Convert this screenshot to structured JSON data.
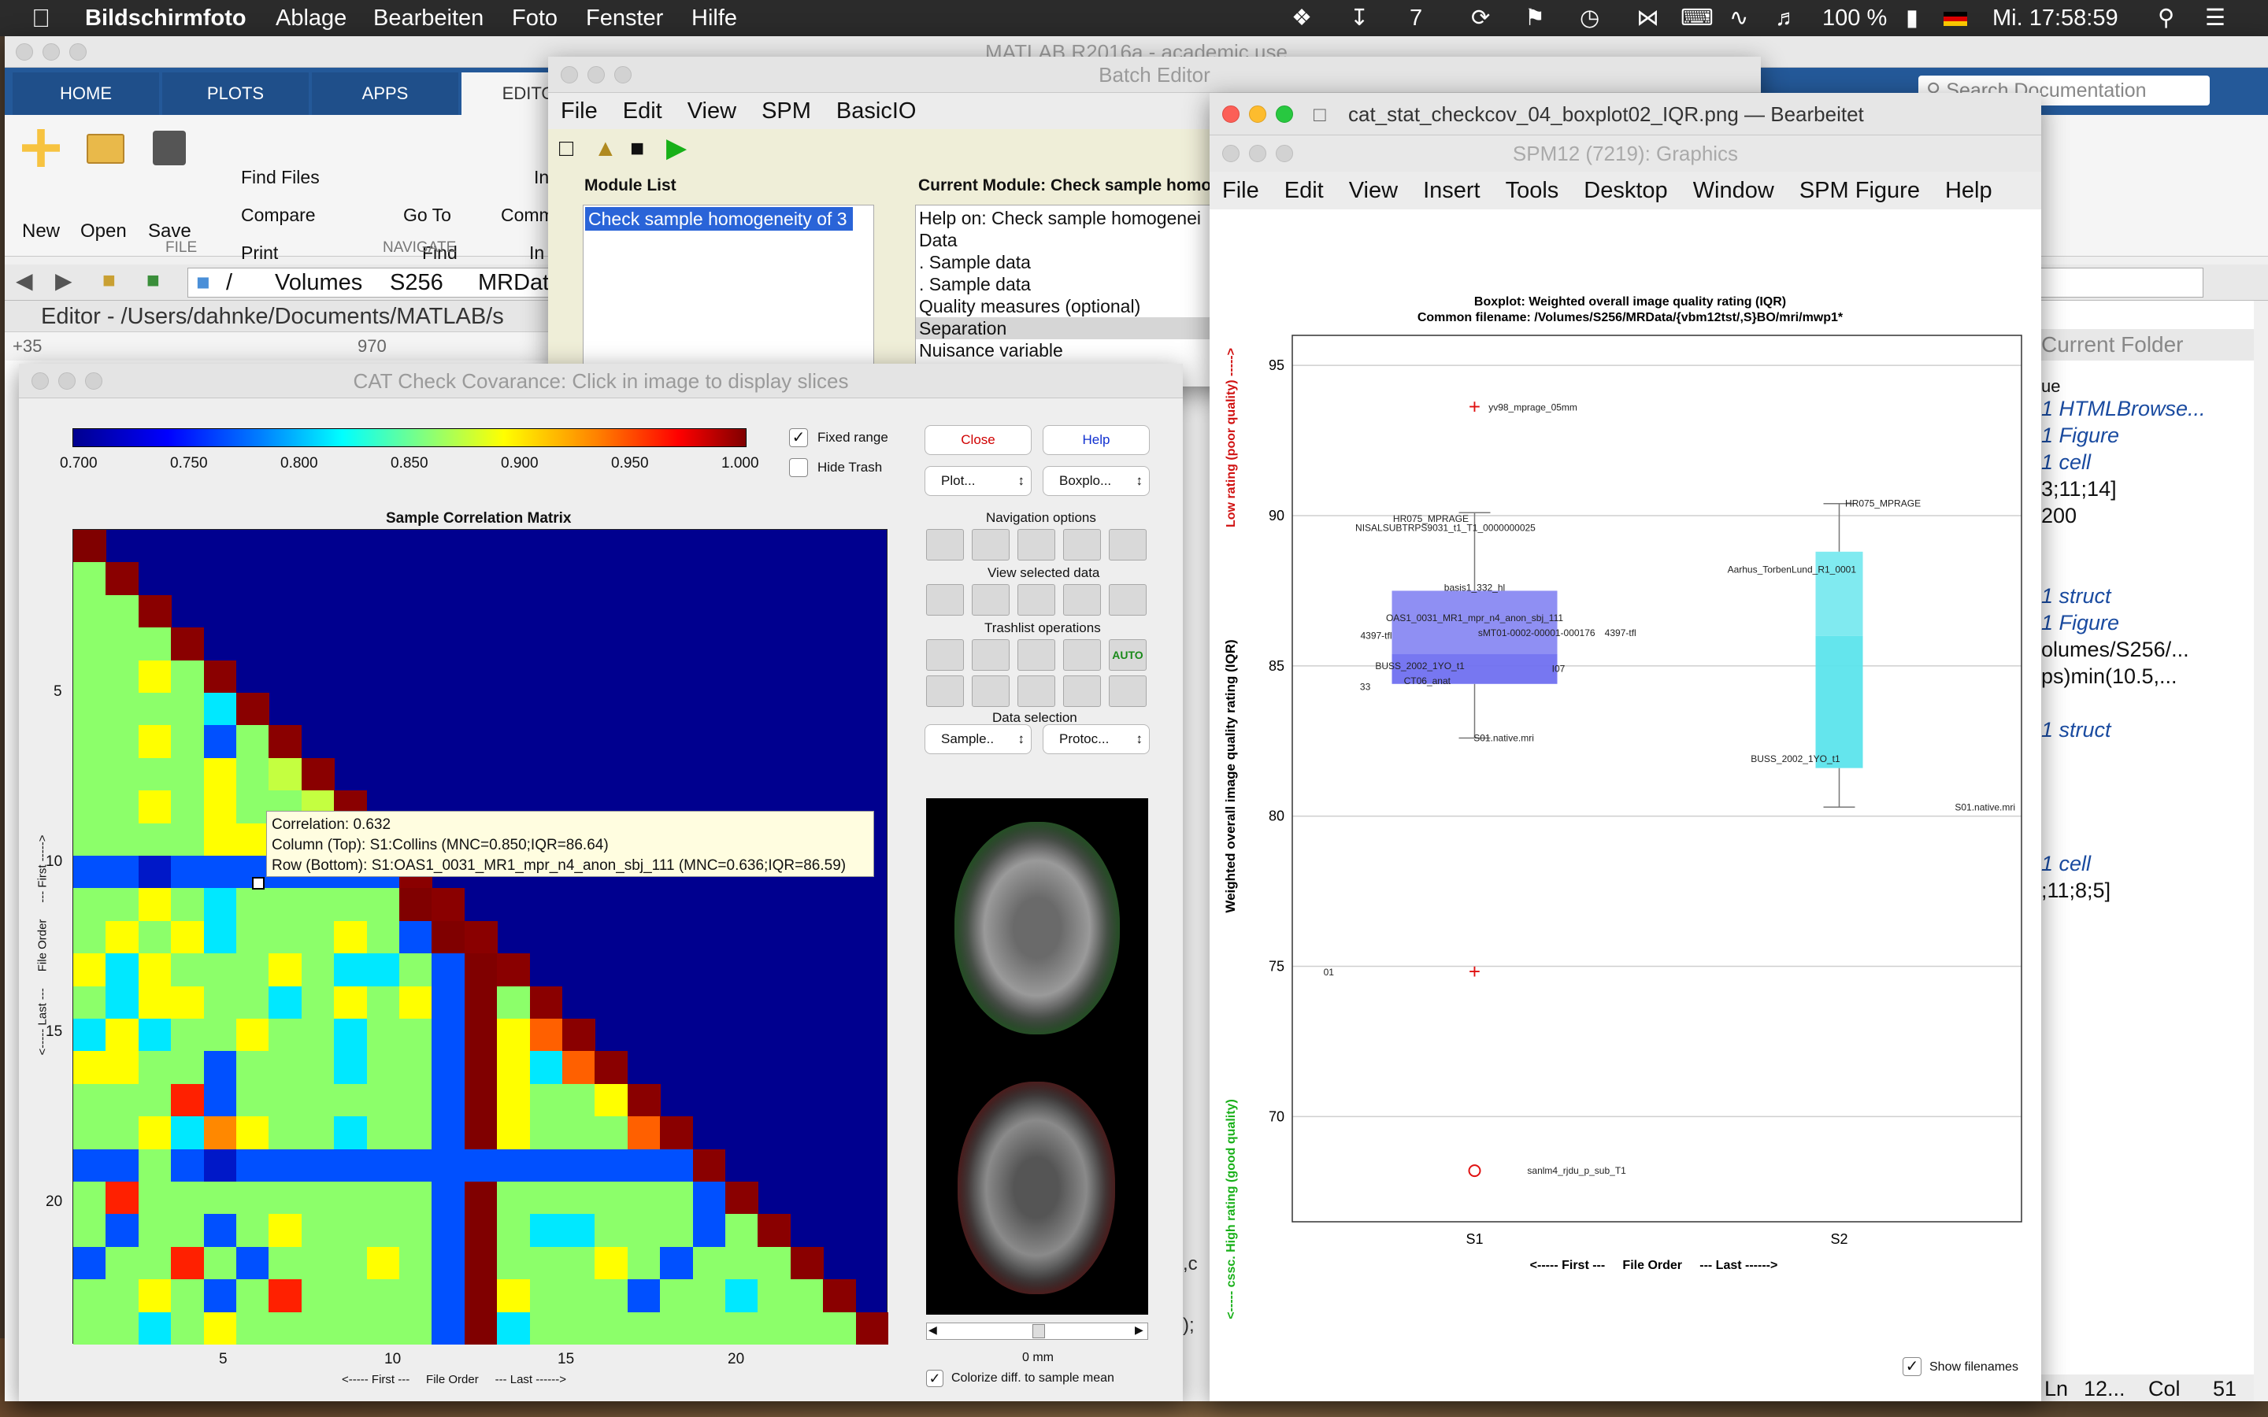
{
  "menubar": {
    "app": "Bildschirmfoto",
    "items": [
      "Ablage",
      "Bearbeiten",
      "Foto",
      "Fenster",
      "Hilfe"
    ],
    "badge": "7",
    "battery": "100 %",
    "clock": "Mi. 17:58:59"
  },
  "matlab": {
    "title": "MATLAB R2016a - academic use",
    "tabs": [
      "HOME",
      "PLOTS",
      "APPS",
      "EDITOR"
    ],
    "search_placeholder": "Search Documentation",
    "file_buttons": [
      "New",
      "Open",
      "Save"
    ],
    "file_tools": [
      "Find Files",
      "Compare",
      "Print"
    ],
    "nav_tools": [
      "Go To",
      "Find"
    ],
    "comment_partial": "Comm",
    "indent_partial": "In",
    "in2": "In",
    "group_file": "FILE",
    "group_navigate": "NAVIGATE",
    "path": [
      "/",
      "Volumes",
      "S256",
      "MRData"
    ],
    "editor_title": "Editor - /Users/dahnke/Documents/MATLAB/s",
    "ruler_left": "+35",
    "ruler_val": "970",
    "current_folder": "Current Folder",
    "workspace_header": "ue",
    "workspace_items": [
      "1 HTMLBrowse...",
      "1 Figure",
      "1 cell",
      "3;11;14]",
      "200",
      "1 struct",
      "1 Figure",
      "olumes/S256/...",
      "ps)min(10.5,...",
      "1 struct",
      "1 cell",
      ";11;8;5]"
    ],
    "status": {
      "ln": "Ln",
      "ln_val": "12...",
      "col": "Col",
      "col_val": "51"
    },
    "edge_chars": [
      "c",
      ",c",
      ");",
      "on"
    ]
  },
  "batch": {
    "title": "Batch Editor",
    "menu": [
      "File",
      "Edit",
      "View",
      "SPM",
      "BasicIO"
    ],
    "module_list_label": "Module List",
    "module_item": "Check sample homogeneity of 3",
    "current_module_label": "Current Module: Check sample homog",
    "lines": [
      "Help on: Check sample homogenei",
      "Data",
      ". Sample data",
      ". Sample data",
      "Quality measures (optional)",
      "Separation",
      "Nuisance variable"
    ]
  },
  "cat": {
    "title": "CAT Check Covarance: Click in image to display slices",
    "colorbar_ticks": [
      "0.700",
      "0.750",
      "0.800",
      "0.850",
      "0.900",
      "0.950",
      "1.000"
    ],
    "fixed_range": "Fixed range",
    "hide_trash": "Hide Trash",
    "close": "Close",
    "help": "Help",
    "plot_select": "Plot...",
    "boxplot_select": "Boxplo...",
    "navigation_options": "Navigation options",
    "view_selected_data": "View selected data",
    "trashlist_operations": "Trashlist operations",
    "auto": "AUTO",
    "data_selection": "Data selection",
    "sample_select": "Sample..",
    "protocol_select": "Protoc...",
    "matrix_title": "Sample Correlation Matrix",
    "y_ticks": [
      "5",
      "10",
      "15",
      "20"
    ],
    "x_ticks": [
      "5",
      "10",
      "15",
      "20"
    ],
    "y_axis_label": "<----- Last ---     File Order     --- First ----->",
    "x_axis_label": "<----- First ---     File Order     --- Last ------>",
    "tooltip": {
      "line1": "Correlation:  0.632",
      "line2": "Column (Top): S1:Collins (MNC=0.850;IQR=86.64)",
      "line3": "Row (Bottom): S1:OAS1_0031_MR1_mpr_n4_anon_sbj_111 (MNC=0.636;IQR=86.59)"
    },
    "slider_label": "0 mm",
    "colorize": "Colorize diff. to sample mean",
    "matrix_rows": [
      "0",
      "C6",
      "CC6",
      "CCC6",
      "CCMC6",
      "CCCCG6",
      "CCMCBC6",
      "CCCCMC96",
      "CCMCMCC96",
      "CCCCMMC9C6",
      "BBFBBBBBBB6",
      "CCMCGCCCCC06",
      "CMCMGCCCMCB06",
      "MGMCCCMCGGCB06",
      "CGMMCCGCMCMB0C6",
      "GMGCCMCCGCCB0MD6",
      "MMCCBCCCGCCB0MGD6",
      "CCCRBCCCCCCB0MCCM6",
      "CCMGOMCCGCCB0MCCCD6",
      "BBCBFBBBBBBBBBBBBBB6",
      "CRCCCCCCCCCB0CCCCCCB6",
      "CBCCBCMCCCCB0CGGCCCBC6",
      "BCCRCBCCCMCB0CCCMCBCCC6",
      "CCMCBCRCCCCB0MCCCBCCGCC6",
      "CCGCMCCCCCCB0GCCCCCCCCCC6"
    ]
  },
  "preview": {
    "title": "cat_stat_checkcov_04_boxplot02_IQR.png — Bearbeitet",
    "spm_title": "SPM12 (7219): Graphics",
    "menu": [
      "File",
      "Edit",
      "View",
      "Insert",
      "Tools",
      "Desktop",
      "Window",
      "SPM Figure",
      "Help"
    ],
    "show_filenames": "Show filenames"
  },
  "chart_data": {
    "type": "box",
    "title": "Boxplot: Weighted overall image quality rating (IQR)",
    "subtitle": "Common filename: /Volumes/S256/MRData/{vbm12tst/,S}BO/mri/mwp1*",
    "ylabel": "Weighted overall image quality rating (IQR)",
    "ylabel_bottom": "<----- cssc. High rating (good quality)",
    "ylabel_top": "Low rating (poor quality) ----->",
    "xlabel": "<----- First ---     File Order     --- Last ------>",
    "categories": [
      "S1",
      "S2"
    ],
    "ylim": [
      66.5,
      96
    ],
    "yticks": [
      70,
      75,
      80,
      85,
      90,
      95
    ],
    "grid": true,
    "series": [
      {
        "name": "S1",
        "q1": 84.4,
        "median": 85.4,
        "q3": 87.5,
        "whisker_low": 82.6,
        "whisker_high": 90.1,
        "color": "#7070f0",
        "outliers": [
          93.6,
          74.8
        ],
        "mean_marker": 68.2
      },
      {
        "name": "S2",
        "q1": 81.6,
        "median": 86.0,
        "q3": 88.8,
        "whisker_low": 80.3,
        "whisker_high": 90.4,
        "color": "#5ce4ec",
        "outliers": []
      }
    ],
    "annotations": [
      {
        "text": "yv98_mprage_05mm",
        "x": 1.16,
        "y": 93.6
      },
      {
        "text": "HR075_MPRAGE",
        "x": 0.88,
        "y": 89.9
      },
      {
        "text": "NISALSUBTRPS9031_t1_T1_0000000025",
        "x": 0.92,
        "y": 89.6
      },
      {
        "text": "basis1_332_hl",
        "x": 1.0,
        "y": 87.6
      },
      {
        "text": "OAS1_0031_MR1_mpr_n4_anon_sbj_111",
        "x": 1.0,
        "y": 86.6
      },
      {
        "text": "4397-tfl",
        "x": 0.73,
        "y": 86.0
      },
      {
        "text": "sMT01-0002-00001-000176",
        "x": 1.17,
        "y": 86.1
      },
      {
        "text": "4397-tfl",
        "x": 1.4,
        "y": 86.1
      },
      {
        "text": "BUSS_2002_1YO_t1",
        "x": 0.85,
        "y": 85.0
      },
      {
        "text": "I07",
        "x": 1.23,
        "y": 84.9
      },
      {
        "text": "CT06_anat",
        "x": 0.87,
        "y": 84.5
      },
      {
        "text": "33",
        "x": 0.7,
        "y": 84.3
      },
      {
        "text": "S01.native.mri",
        "x": 1.08,
        "y": 82.6
      },
      {
        "text": "01",
        "x": 0.6,
        "y": 74.8
      },
      {
        "text": "sanlm4_rjdu_p_sub_T1",
        "x": 1.28,
        "y": 68.2
      },
      {
        "text": "HR075_MPRAGE",
        "x": 2.12,
        "y": 90.4
      },
      {
        "text": "Aarhus_TorbenLund_R1_0001",
        "x": 1.87,
        "y": 88.2
      },
      {
        "text": "BUSS_2002_1YO_t1",
        "x": 1.88,
        "y": 81.9
      },
      {
        "text": "S01.native.mri",
        "x": 2.4,
        "y": 80.3
      }
    ]
  }
}
